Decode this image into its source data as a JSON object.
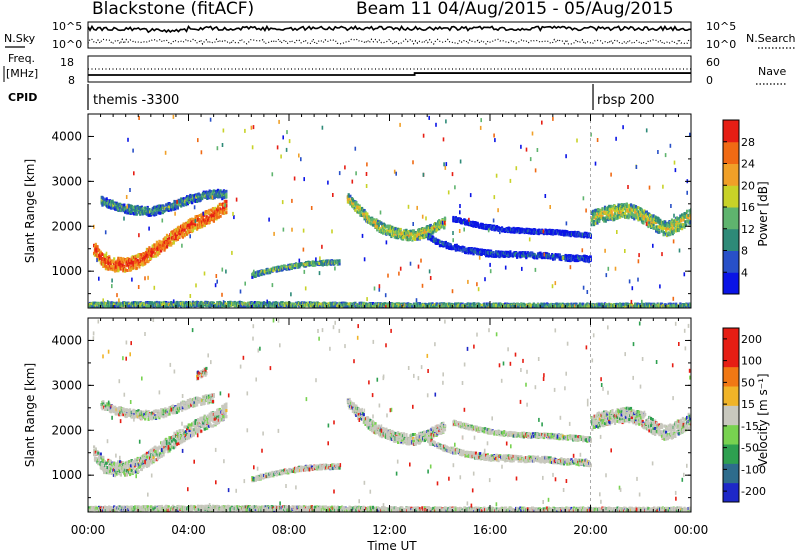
{
  "header": {
    "station": "Blackstone (fitACF)",
    "beam_date": "Beam 11 04/Aug/2015 - 05/Aug/2015"
  },
  "top_strip": {
    "nsky_label": "N.Sky",
    "nsearch_label": "N.Search",
    "count_tick_hi": "10^5",
    "count_tick_lo": "10^0",
    "freq_label_1": "Freq.",
    "freq_label_2": "[MHz]",
    "freq_tick_hi": "18",
    "freq_tick_lo": "8",
    "nave_label": "Nave",
    "nave_tick_hi": "60",
    "nave_tick_lo": "0",
    "cpid_label": "CPID",
    "cpid_1": "themis -3300",
    "cpid_2": "rbsp 200",
    "cpid_change_hour": 20.1,
    "nsky_level": 0.8,
    "nsearch_level": 0.2,
    "freq_before": 10.5,
    "freq_after": 11.3,
    "freq_change_hour": 13.0,
    "nave_level": 30
  },
  "chart_data": [
    {
      "type": "heatmap",
      "panel": "power",
      "ylabel": "Slant Range [km]",
      "xlabel": "Time UT",
      "ylim": [
        180,
        4500
      ],
      "xlim": [
        0,
        24
      ],
      "x_ticks": [
        "00:00",
        "04:00",
        "08:00",
        "12:00",
        "16:00",
        "20:00",
        "00:00"
      ],
      "y_ticks": [
        1000,
        2000,
        3000,
        4000
      ],
      "colorbar_title": "Power [dB]",
      "colorbar_ticks": [
        "4",
        "8",
        "12",
        "16",
        "20",
        "24",
        "28"
      ],
      "colorbar_colors": [
        "#0a14e6",
        "#2850c8",
        "#2e8a78",
        "#5fb46e",
        "#c8d228",
        "#f0a028",
        "#f06a14",
        "#e61e14"
      ],
      "features": [
        {
          "name": "band A",
          "points": [
            [
              0.5,
              2600
            ],
            [
              1.0,
              2500
            ],
            [
              1.5,
              2420
            ],
            [
              2.0,
              2380
            ],
            [
              2.5,
              2360
            ],
            [
              3.0,
              2420
            ],
            [
              3.5,
              2520
            ],
            [
              4.0,
              2630
            ],
            [
              4.5,
              2700
            ],
            [
              5.0,
              2750
            ],
            [
              5.5,
              2730
            ]
          ],
          "width": 180,
          "level": 0.4
        },
        {
          "name": "band B",
          "points": [
            [
              0.2,
              1550
            ],
            [
              0.6,
              1250
            ],
            [
              1.0,
              1180
            ],
            [
              1.5,
              1170
            ],
            [
              2.0,
              1260
            ],
            [
              2.5,
              1450
            ],
            [
              3.0,
              1650
            ],
            [
              3.5,
              1850
            ],
            [
              4.0,
              2030
            ],
            [
              4.5,
              2170
            ],
            [
              5.0,
              2300
            ],
            [
              5.5,
              2480
            ]
          ],
          "width": 300,
          "level": 0.92
        },
        {
          "name": "band C",
          "points": [
            [
              6.5,
              940
            ],
            [
              7.0,
              1020
            ],
            [
              7.5,
              1080
            ],
            [
              8.0,
              1130
            ],
            [
              8.5,
              1180
            ],
            [
              9.0,
              1210
            ],
            [
              9.5,
              1220
            ],
            [
              10.0,
              1230
            ]
          ],
          "width": 90,
          "level": 0.5
        },
        {
          "name": "band D",
          "points": [
            [
              10.3,
              2650
            ],
            [
              10.8,
              2380
            ],
            [
              11.2,
              2150
            ],
            [
              11.7,
              1980
            ],
            [
              12.2,
              1880
            ],
            [
              12.7,
              1830
            ],
            [
              13.0,
              1830
            ],
            [
              13.4,
              1900
            ],
            [
              13.8,
              2020
            ],
            [
              14.2,
              2120
            ]
          ],
          "width": 220,
          "level": 0.6
        },
        {
          "name": "band E",
          "points": [
            [
              13.5,
              1800
            ],
            [
              14.0,
              1650
            ],
            [
              15.0,
              1500
            ],
            [
              16.0,
              1420
            ],
            [
              17.0,
              1400
            ],
            [
              18.0,
              1380
            ],
            [
              19.0,
              1330
            ],
            [
              19.5,
              1320
            ],
            [
              20.0,
              1300
            ]
          ],
          "width": 120,
          "level": 0.22
        },
        {
          "name": "band F",
          "points": [
            [
              14.5,
              2200
            ],
            [
              15.5,
              2050
            ],
            [
              16.5,
              1960
            ],
            [
              17.5,
              1920
            ],
            [
              18.5,
              1900
            ],
            [
              19.5,
              1850
            ],
            [
              20.0,
              1820
            ]
          ],
          "width": 90,
          "level": 0.18
        },
        {
          "name": "band G",
          "points": [
            [
              20.0,
              2200
            ],
            [
              20.5,
              2300
            ],
            [
              21.0,
              2350
            ],
            [
              21.5,
              2380
            ],
            [
              22.0,
              2280
            ],
            [
              22.5,
              2100
            ],
            [
              23.0,
              1960
            ],
            [
              23.5,
              2100
            ],
            [
              24.0,
              2280
            ]
          ],
          "width": 320,
          "level": 0.58
        },
        {
          "name": "band H",
          "points": [
            [
              0,
              280
            ],
            [
              4,
              300
            ],
            [
              8,
              290
            ],
            [
              10,
              280
            ],
            [
              12,
              270
            ],
            [
              16,
              260
            ],
            [
              20,
              260
            ],
            [
              24,
              260
            ]
          ],
          "width": 90,
          "level": 0.5
        }
      ]
    },
    {
      "type": "heatmap",
      "panel": "velocity",
      "ylabel": "Slant Range [km]",
      "xlabel": "Time UT",
      "ylim": [
        180,
        4500
      ],
      "xlim": [
        0,
        24
      ],
      "x_ticks": [
        "00:00",
        "04:00",
        "08:00",
        "12:00",
        "16:00",
        "20:00",
        "00:00"
      ],
      "y_ticks": [
        1000,
        2000,
        3000,
        4000
      ],
      "colorbar_title": "Velocity [m s⁻¹]",
      "colorbar_ticks": [
        "200",
        "100",
        "50",
        "15",
        "-15",
        "-50",
        "-100",
        "-200"
      ],
      "colorbar_colors": [
        "#1e28c8",
        "#2e6c8c",
        "#2ea050",
        "#78d250",
        "#c8c8be",
        "#f0b428",
        "#f07814",
        "#e61e14",
        "#e61e14"
      ],
      "features": [
        {
          "name": "band A",
          "points": [
            [
              0.5,
              2600
            ],
            [
              1.0,
              2500
            ],
            [
              1.5,
              2420
            ],
            [
              2.0,
              2380
            ],
            [
              2.5,
              2360
            ],
            [
              3.0,
              2420
            ],
            [
              3.5,
              2520
            ],
            [
              4.0,
              2630
            ],
            [
              4.5,
              2700
            ],
            [
              5.0,
              2750
            ]
          ],
          "width": 180,
          "level": 0.5
        },
        {
          "name": "band B",
          "points": [
            [
              0.2,
              1550
            ],
            [
              0.6,
              1250
            ],
            [
              1.0,
              1180
            ],
            [
              1.5,
              1170
            ],
            [
              2.0,
              1260
            ],
            [
              2.5,
              1450
            ],
            [
              3.0,
              1650
            ],
            [
              3.5,
              1850
            ],
            [
              4.0,
              2030
            ],
            [
              4.5,
              2170
            ],
            [
              5.0,
              2300
            ],
            [
              5.5,
              2480
            ]
          ],
          "width": 320,
          "level": 0.5
        },
        {
          "name": "band C",
          "points": [
            [
              6.5,
              940
            ],
            [
              7.0,
              1020
            ],
            [
              7.5,
              1080
            ],
            [
              8.0,
              1130
            ],
            [
              8.5,
              1180
            ],
            [
              9.0,
              1210
            ],
            [
              9.5,
              1220
            ],
            [
              10.0,
              1230
            ]
          ],
          "width": 90,
          "level": 0.6
        },
        {
          "name": "band D",
          "points": [
            [
              10.3,
              2650
            ],
            [
              10.8,
              2380
            ],
            [
              11.2,
              2150
            ],
            [
              11.7,
              1980
            ],
            [
              12.2,
              1880
            ],
            [
              12.7,
              1830
            ],
            [
              13.0,
              1830
            ],
            [
              13.4,
              1900
            ],
            [
              13.8,
              2020
            ],
            [
              14.2,
              2120
            ]
          ],
          "width": 220,
          "level": 0.5
        },
        {
          "name": "band E",
          "points": [
            [
              13.5,
              1800
            ],
            [
              14.0,
              1650
            ],
            [
              15.0,
              1500
            ],
            [
              16.0,
              1420
            ],
            [
              17.0,
              1400
            ],
            [
              18.0,
              1380
            ],
            [
              19.0,
              1330
            ],
            [
              19.5,
              1320
            ],
            [
              20.0,
              1300
            ]
          ],
          "width": 120,
          "level": 0.5
        },
        {
          "name": "band F",
          "points": [
            [
              14.5,
              2200
            ],
            [
              15.5,
              2050
            ],
            [
              16.5,
              1960
            ],
            [
              17.5,
              1920
            ],
            [
              18.5,
              1900
            ],
            [
              19.5,
              1850
            ],
            [
              20.0,
              1820
            ]
          ],
          "width": 90,
          "level": 0.5
        },
        {
          "name": "band G",
          "points": [
            [
              20.0,
              2200
            ],
            [
              20.5,
              2300
            ],
            [
              21.0,
              2350
            ],
            [
              21.5,
              2380
            ],
            [
              22.0,
              2280
            ],
            [
              22.5,
              2100
            ],
            [
              23.0,
              1960
            ],
            [
              23.5,
              2100
            ],
            [
              24.0,
              2280
            ]
          ],
          "width": 320,
          "level": 0.5
        },
        {
          "name": "band H",
          "points": [
            [
              0,
              280
            ],
            [
              4,
              300
            ],
            [
              8,
              290
            ],
            [
              10,
              280
            ],
            [
              12,
              270
            ],
            [
              16,
              260
            ],
            [
              20,
              260
            ],
            [
              24,
              260
            ]
          ],
          "width": 90,
          "level": 0.42
        },
        {
          "name": "red patch",
          "points": [
            [
              4.3,
              3250
            ],
            [
              4.5,
              3300
            ],
            [
              4.7,
              3350
            ]
          ],
          "width": 160,
          "level": 0.95
        }
      ]
    }
  ]
}
